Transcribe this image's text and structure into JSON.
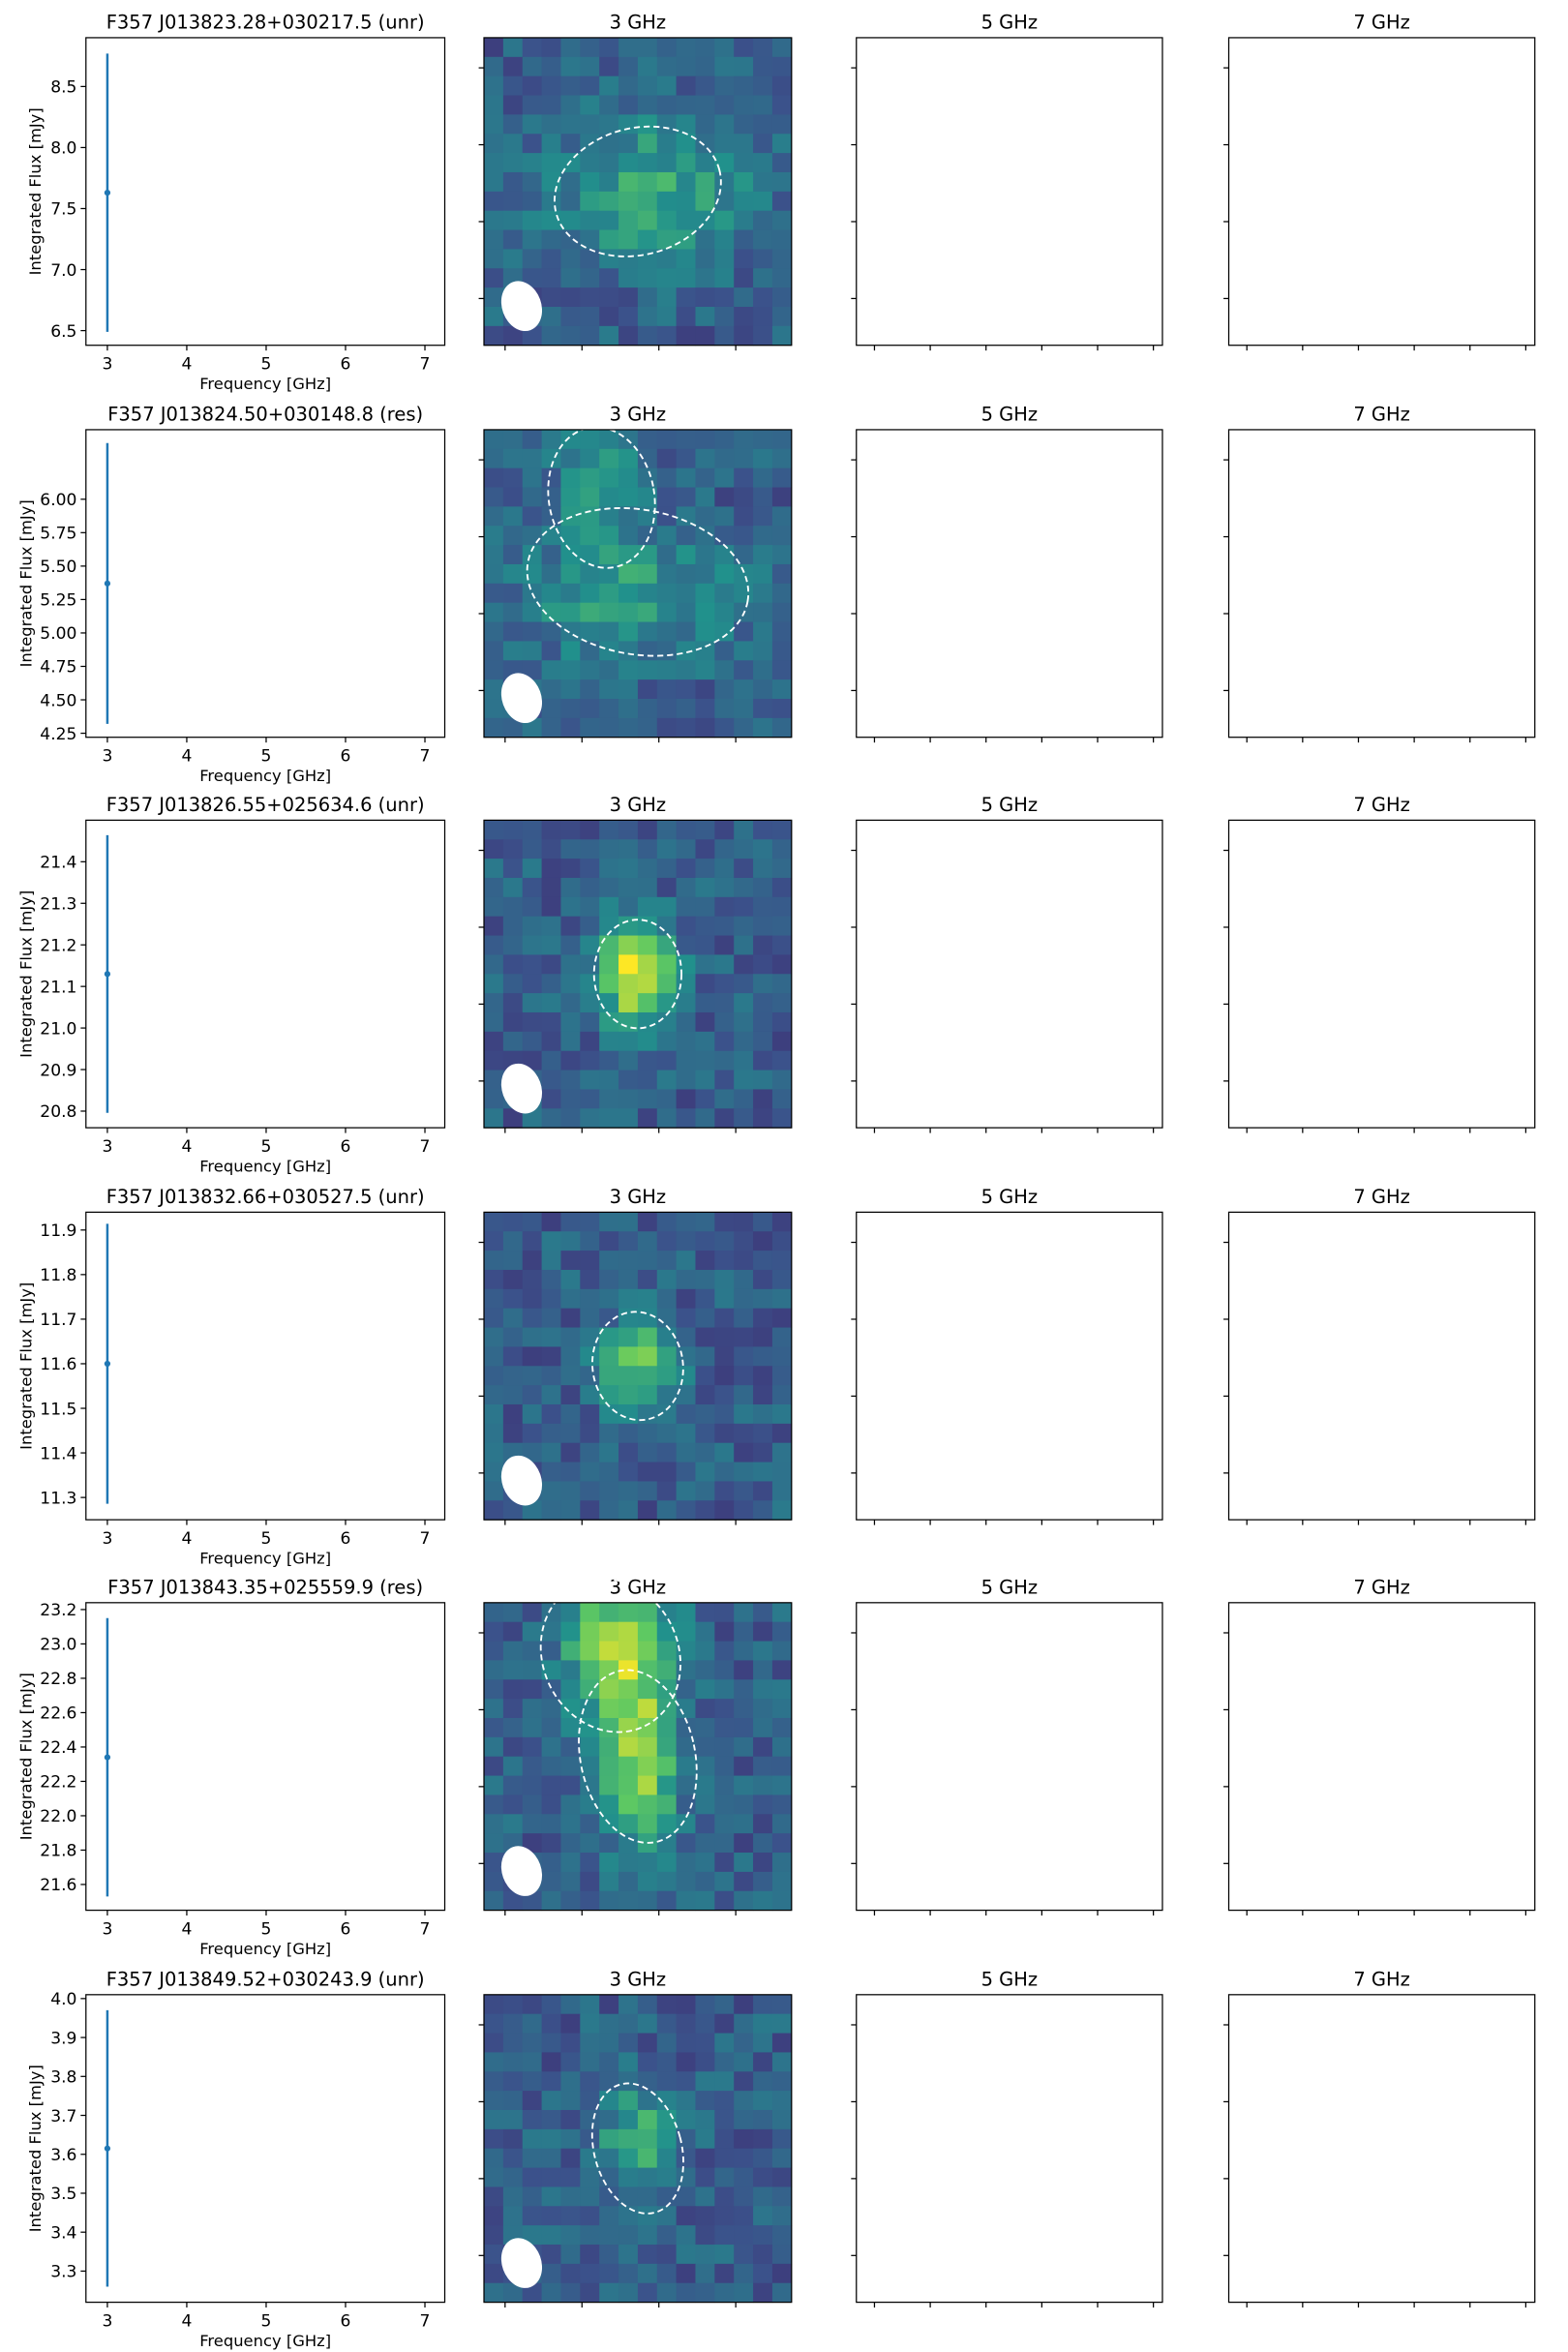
{
  "chart_data": [
    {
      "type": "errorbar",
      "title": "F357 J013823.28+030217.5 (unr)",
      "x_label": "Frequency [GHz]",
      "y_label": "Integrated Flux [mJy]",
      "x": [
        3
      ],
      "values": [
        7.63
      ],
      "errors": [
        1.14
      ],
      "color": "#1f77b4",
      "xlim": [
        2.73,
        7.25
      ],
      "xticks": [
        3,
        4,
        5,
        6,
        7
      ],
      "ylim": [
        6.38,
        8.9
      ],
      "yticks": [
        6.5,
        {
          "value": 7.0,
          "label": "7.0"
        },
        7.5,
        {
          "value": 8.0,
          "label": "8.0"
        },
        8.5
      ]
    },
    {
      "type": "image",
      "title": "3 GHz"
    },
    {
      "type": "empty",
      "title": "5 GHz"
    },
    {
      "type": "empty",
      "title": "7 GHz"
    },
    {
      "type": "errorbar",
      "title": "F357 J013824.50+030148.8 (res)",
      "x_label": "Frequency [GHz]",
      "y_label": "Integrated Flux [mJy]",
      "x": [
        3
      ],
      "values": [
        5.37
      ],
      "errors": [
        1.05
      ],
      "color": "#1f77b4",
      "xlim": [
        2.73,
        7.25
      ],
      "xticks": [
        3,
        4,
        5,
        6,
        7
      ],
      "ylim": [
        4.22,
        6.52
      ],
      "yticks": [
        4.25,
        {
          "value": 4.5,
          "label": "4.50"
        },
        4.75,
        {
          "value": 5.0,
          "label": "5.00"
        },
        5.25,
        {
          "value": 5.5,
          "label": "5.50"
        },
        5.75,
        {
          "value": 6.0,
          "label": "6.00"
        }
      ]
    },
    {
      "type": "image",
      "title": "3 GHz"
    },
    {
      "type": "empty",
      "title": "5 GHz"
    },
    {
      "type": "empty",
      "title": "7 GHz"
    },
    {
      "type": "errorbar",
      "title": "F357 J013826.55+025634.6 (unr)",
      "x_label": "Frequency [GHz]",
      "y_label": "Integrated Flux [mJy]",
      "x": [
        3
      ],
      "values": [
        21.13
      ],
      "errors": [
        0.334
      ],
      "color": "#1f77b4",
      "xlim": [
        2.73,
        7.25
      ],
      "xticks": [
        3,
        4,
        5,
        6,
        7
      ],
      "ylim": [
        20.76,
        21.5
      ],
      "yticks": [
        20.8,
        20.9,
        {
          "value": 21.0,
          "label": "21.0"
        },
        21.1,
        21.2,
        21.3,
        21.4
      ]
    },
    {
      "type": "image",
      "title": "3 GHz"
    },
    {
      "type": "empty",
      "title": "5 GHz"
    },
    {
      "type": "empty",
      "title": "7 GHz"
    },
    {
      "type": "errorbar",
      "title": "F357 J013832.66+030527.5 (unr)",
      "x_label": "Frequency [GHz]",
      "y_label": "Integrated Flux [mJy]",
      "x": [
        3
      ],
      "values": [
        11.6
      ],
      "errors": [
        0.314
      ],
      "color": "#1f77b4",
      "xlim": [
        2.73,
        7.25
      ],
      "xticks": [
        3,
        4,
        5,
        6,
        7
      ],
      "ylim": [
        11.25,
        11.94
      ],
      "yticks": [
        11.3,
        11.4,
        11.5,
        11.6,
        11.7,
        11.8,
        11.9
      ]
    },
    {
      "type": "image",
      "title": "3 GHz"
    },
    {
      "type": "empty",
      "title": "5 GHz"
    },
    {
      "type": "empty",
      "title": "7 GHz"
    },
    {
      "type": "errorbar",
      "title": "F357 J013843.35+025559.9 (res)",
      "x_label": "Frequency [GHz]",
      "y_label": "Integrated Flux [mJy]",
      "x": [
        3
      ],
      "values": [
        22.34
      ],
      "errors": [
        0.81
      ],
      "color": "#1f77b4",
      "xlim": [
        2.73,
        7.25
      ],
      "xticks": [
        3,
        4,
        5,
        6,
        7
      ],
      "ylim": [
        21.45,
        23.24
      ],
      "yticks": [
        21.6,
        21.8,
        {
          "value": 22.0,
          "label": "22.0"
        },
        22.2,
        22.4,
        22.6,
        22.8,
        {
          "value": 23.0,
          "label": "23.0"
        },
        23.2
      ]
    },
    {
      "type": "image",
      "title": "3 GHz"
    },
    {
      "type": "empty",
      "title": "5 GHz"
    },
    {
      "type": "empty",
      "title": "7 GHz"
    },
    {
      "type": "errorbar",
      "title": "F357 J013849.52+030243.9 (unr)",
      "x_label": "Frequency [GHz]",
      "y_label": "Integrated Flux [mJy]",
      "x": [
        3
      ],
      "values": [
        3.615
      ],
      "errors": [
        0.355
      ],
      "color": "#1f77b4",
      "xlim": [
        2.73,
        7.25
      ],
      "xticks": [
        3,
        4,
        5,
        6,
        7
      ],
      "ylim": [
        3.22,
        4.01
      ],
      "yticks": [
        3.3,
        3.4,
        3.5,
        3.6,
        3.7,
        3.8,
        3.9,
        {
          "value": 4.0,
          "label": "4.0"
        }
      ]
    },
    {
      "type": "image",
      "title": "3 GHz"
    },
    {
      "type": "empty",
      "title": "5 GHz"
    },
    {
      "type": "empty",
      "title": "7 GHz"
    }
  ]
}
